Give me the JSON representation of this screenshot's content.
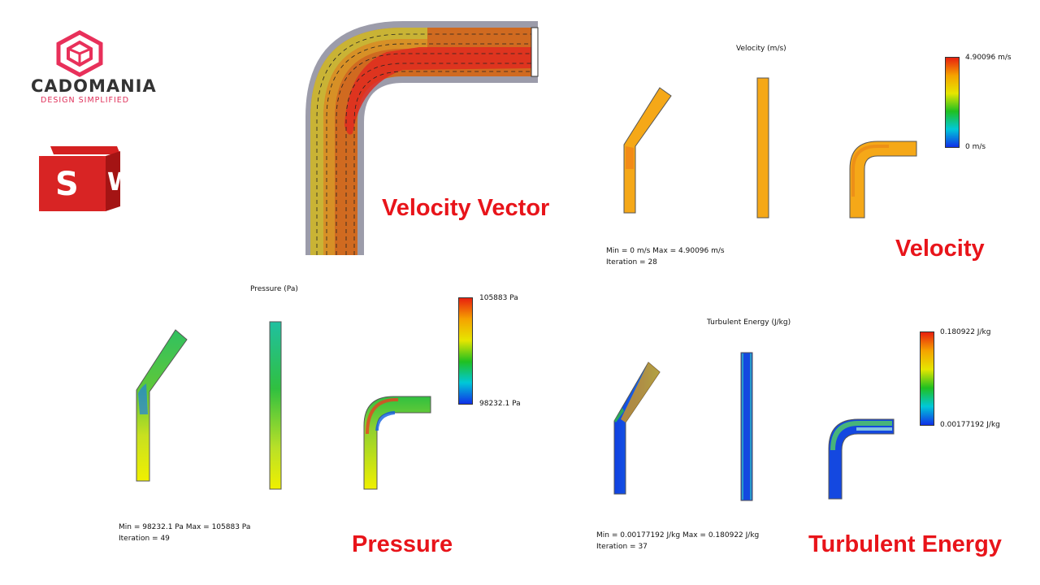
{
  "brand": {
    "name": "CADOMANIA",
    "tagline": "DESIGN SIMPLIFIED",
    "logo_color": "#e8305a",
    "software_badge": "SW"
  },
  "section_labels": {
    "velocity_vector": "Velocity Vector",
    "velocity": "Velocity",
    "pressure": "Pressure",
    "turbulent_energy": "Turbulent Energy",
    "color": "#e8141a"
  },
  "velocity_plot": {
    "title": "Velocity (m/s)",
    "max_label": "4.90096 m/s",
    "min_label": "0 m/s",
    "stats_line1": "Min = 0 m/s   Max = 4.90096 m/s",
    "stats_line2": "Iteration = 28"
  },
  "pressure_plot": {
    "title": "Pressure (Pa)",
    "max_label": "105883 Pa",
    "min_label": "98232.1 Pa",
    "stats_line1": "Min = 98232.1 Pa   Max = 105883 Pa",
    "stats_line2": "Iteration = 49"
  },
  "turbulent_plot": {
    "title": "Turbulent Energy (J/kg)",
    "max_label": "0.180922 J/kg",
    "min_label": "0.00177192 J/kg",
    "stats_line1": "Min = 0.00177192 J/kg   Max = 0.180922 J/kg",
    "stats_line2": "Iteration = 37"
  },
  "colormap": [
    "#e8200f",
    "#f5a300",
    "#e6e600",
    "#20c020",
    "#00c8d8",
    "#1030e8"
  ]
}
